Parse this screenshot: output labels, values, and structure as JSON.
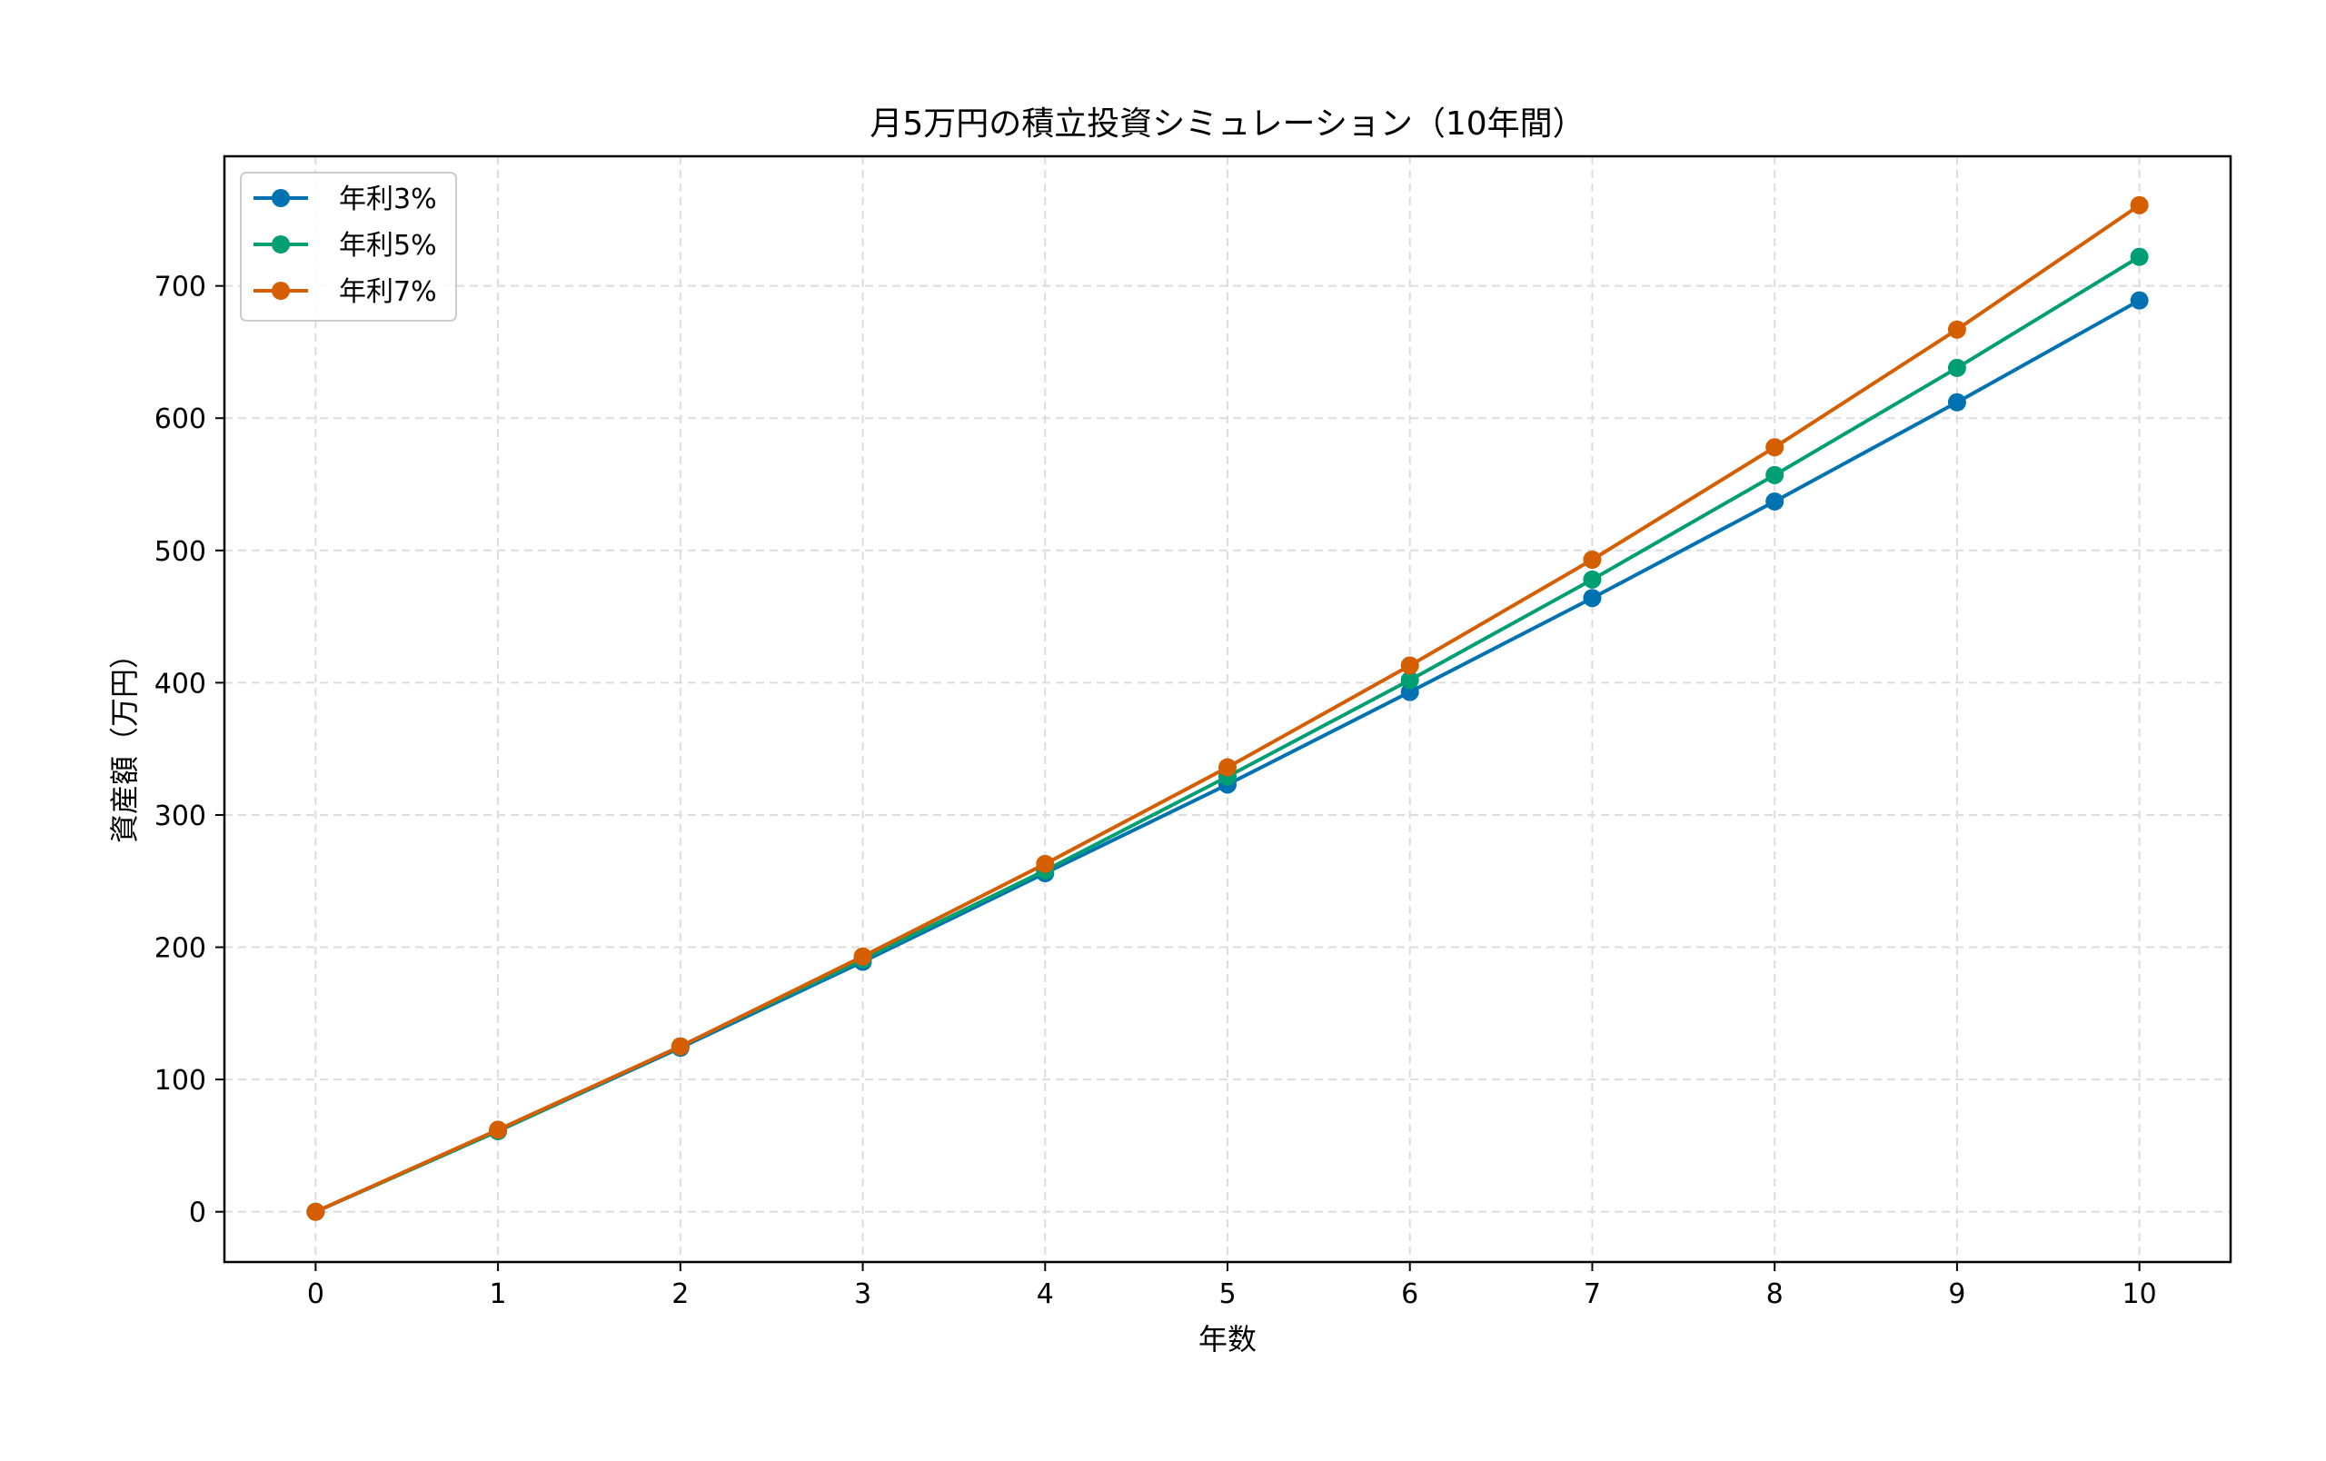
{
  "chart_data": {
    "type": "line",
    "title": "月5万円の積立投資シミュレーション（10年間）",
    "xlabel": "年数",
    "ylabel": "資産額（万円）",
    "x": [
      0,
      1,
      2,
      3,
      4,
      5,
      6,
      7,
      8,
      9,
      10
    ],
    "xlim": [
      -0.5,
      10.5
    ],
    "ylim": [
      -38,
      798
    ],
    "yticks": [
      0,
      100,
      200,
      300,
      400,
      500,
      600,
      700
    ],
    "grid": true,
    "legend_position": "top-left",
    "series": [
      {
        "name": "年利3%",
        "color": "#0072B2",
        "values": [
          0,
          61,
          124,
          189,
          256,
          323,
          393,
          464,
          537,
          612,
          689
        ]
      },
      {
        "name": "年利5%",
        "color": "#009E73",
        "values": [
          0,
          61,
          125,
          191,
          258,
          329,
          402,
          478,
          557,
          638,
          722
        ]
      },
      {
        "name": "年利7%",
        "color": "#D55E00",
        "values": [
          0,
          62,
          125,
          193,
          263,
          336,
          413,
          493,
          578,
          667,
          761
        ]
      }
    ]
  }
}
